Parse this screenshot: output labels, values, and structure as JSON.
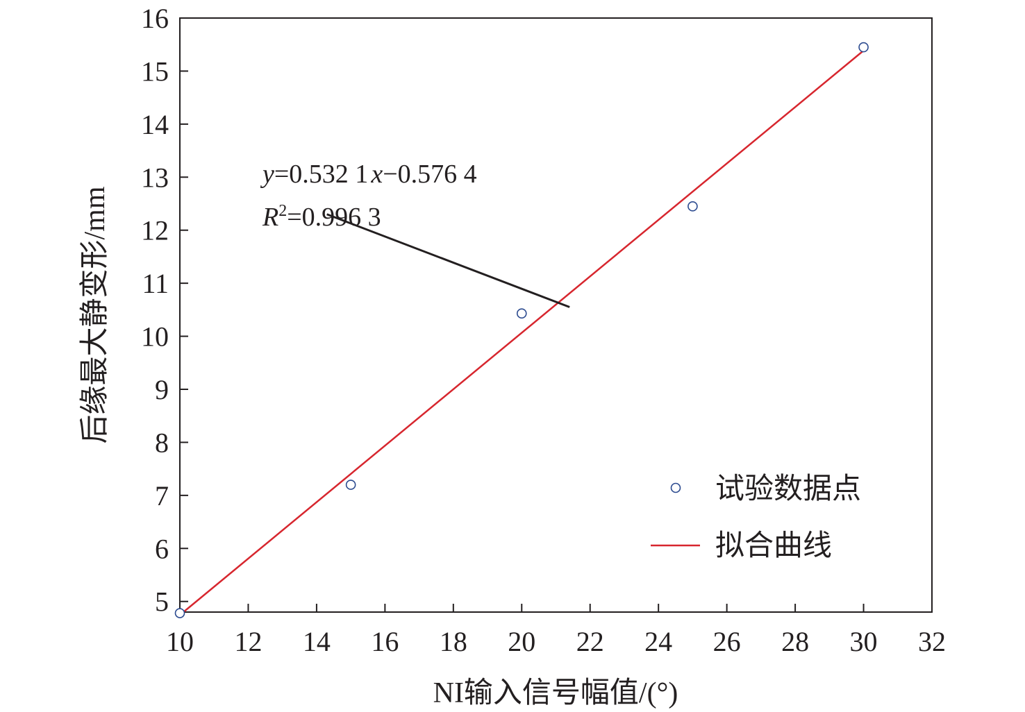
{
  "chart_data": {
    "type": "scatter",
    "xlabel": "NI输入信号幅值/(°)",
    "ylabel": "后缘最大静变形/mm",
    "xlim": [
      10,
      32
    ],
    "ylim": [
      4.8,
      16
    ],
    "x_ticks": [
      10,
      12,
      14,
      16,
      18,
      20,
      22,
      24,
      26,
      28,
      30,
      32
    ],
    "y_ticks": [
      5,
      6,
      7,
      8,
      9,
      10,
      11,
      12,
      13,
      14,
      15,
      16
    ],
    "grid": false,
    "legend_position": "bottom-right",
    "series": [
      {
        "name": "试验数据点",
        "kind": "scatter",
        "marker": "open-circle",
        "color": "#2b4a8f",
        "x": [
          10,
          15,
          20,
          25,
          30
        ],
        "y": [
          4.78,
          7.2,
          10.43,
          12.45,
          15.45
        ]
      },
      {
        "name": "拟合曲线",
        "kind": "line",
        "color": "#d7262e",
        "slope": 0.5321,
        "intercept": -0.5764,
        "x_range": [
          10,
          30
        ]
      }
    ],
    "annotation": {
      "equation_y": "y",
      "equation_body": "=0.532 1",
      "equation_x": "x",
      "equation_tail": "−0.576 4",
      "r2_symbol": "R",
      "r2_exp": "2",
      "r2_value": "=0.996 3",
      "pointer_from": [
        14.3,
        12.3
      ],
      "pointer_to": [
        21.4,
        10.55
      ]
    }
  }
}
